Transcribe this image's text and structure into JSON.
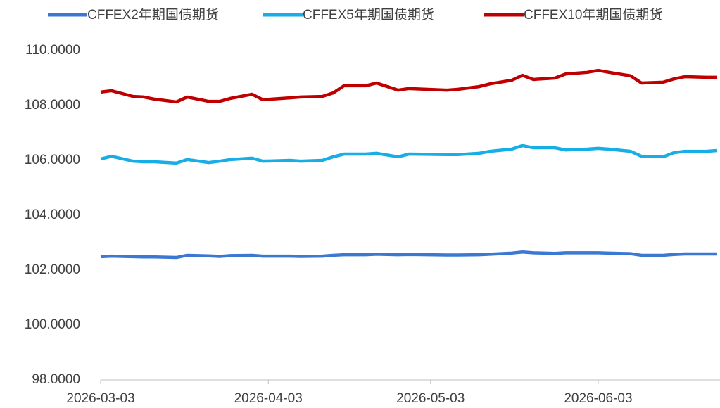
{
  "chart_data": {
    "type": "line",
    "x": [
      "2026-03-03",
      "2026-03-05",
      "2026-03-09",
      "2026-03-11",
      "2026-03-13",
      "2026-03-17",
      "2026-03-19",
      "2026-03-23",
      "2026-03-25",
      "2026-03-27",
      "2026-03-31",
      "2026-04-02",
      "2026-04-07",
      "2026-04-09",
      "2026-04-13",
      "2026-04-15",
      "2026-04-17",
      "2026-04-21",
      "2026-04-23",
      "2026-04-27",
      "2026-04-29",
      "2026-05-06",
      "2026-05-08",
      "2026-05-12",
      "2026-05-14",
      "2026-05-18",
      "2026-05-20",
      "2026-05-22",
      "2026-05-26",
      "2026-05-28",
      "2026-06-01",
      "2026-06-03",
      "2026-06-05",
      "2026-06-09",
      "2026-06-11",
      "2026-06-15",
      "2026-06-17",
      "2026-06-19",
      "2026-06-23",
      "2026-06-25"
    ],
    "series": [
      {
        "name": "CFFEX2年期国债期货",
        "color": "#3a78d4",
        "values": [
          102.49,
          102.51,
          102.49,
          102.48,
          102.48,
          102.46,
          102.54,
          102.52,
          102.5,
          102.53,
          102.54,
          102.51,
          102.51,
          102.5,
          102.51,
          102.54,
          102.56,
          102.56,
          102.58,
          102.56,
          102.57,
          102.55,
          102.55,
          102.56,
          102.58,
          102.62,
          102.66,
          102.63,
          102.61,
          102.63,
          102.63,
          102.63,
          102.62,
          102.6,
          102.54,
          102.54,
          102.57,
          102.59,
          102.59,
          102.59
        ]
      },
      {
        "name": "CFFEX5年期国债期货",
        "color": "#17aee6",
        "values": [
          106.05,
          106.15,
          105.97,
          105.95,
          105.95,
          105.9,
          106.03,
          105.92,
          105.97,
          106.03,
          106.08,
          105.97,
          106.0,
          105.97,
          106.0,
          106.13,
          106.23,
          106.23,
          106.26,
          106.13,
          106.23,
          106.21,
          106.21,
          106.26,
          106.33,
          106.41,
          106.54,
          106.46,
          106.46,
          106.38,
          106.41,
          106.44,
          106.41,
          106.33,
          106.15,
          106.13,
          106.28,
          106.33,
          106.33,
          106.36
        ]
      },
      {
        "name": "CFFEX10年期国债期货",
        "color": "#c00000",
        "values": [
          108.49,
          108.54,
          108.33,
          108.31,
          108.23,
          108.13,
          108.31,
          108.15,
          108.15,
          108.26,
          108.41,
          108.21,
          108.28,
          108.31,
          108.33,
          108.46,
          108.72,
          108.72,
          108.82,
          108.56,
          108.62,
          108.56,
          108.59,
          108.69,
          108.79,
          108.92,
          109.1,
          108.95,
          109.0,
          109.15,
          109.21,
          109.28,
          109.21,
          109.08,
          108.82,
          108.85,
          108.97,
          109.05,
          109.03,
          109.03
        ]
      }
    ],
    "xlim": [
      "2026-03-03",
      "2026-06-25"
    ],
    "xticks": [
      "2026-03-03",
      "2026-04-03",
      "2026-05-03",
      "2026-06-03"
    ],
    "ylim": [
      98,
      110
    ],
    "yticks": [
      {
        "value": 98,
        "label": "98.0000"
      },
      {
        "value": 100,
        "label": "100.0000"
      },
      {
        "value": 102,
        "label": "102.0000"
      },
      {
        "value": 104,
        "label": "104.0000"
      },
      {
        "value": 106,
        "label": "106.0000"
      },
      {
        "value": 108,
        "label": "108.0000"
      },
      {
        "value": 110,
        "label": "110.0000"
      }
    ],
    "grid": false,
    "legend": "top"
  }
}
